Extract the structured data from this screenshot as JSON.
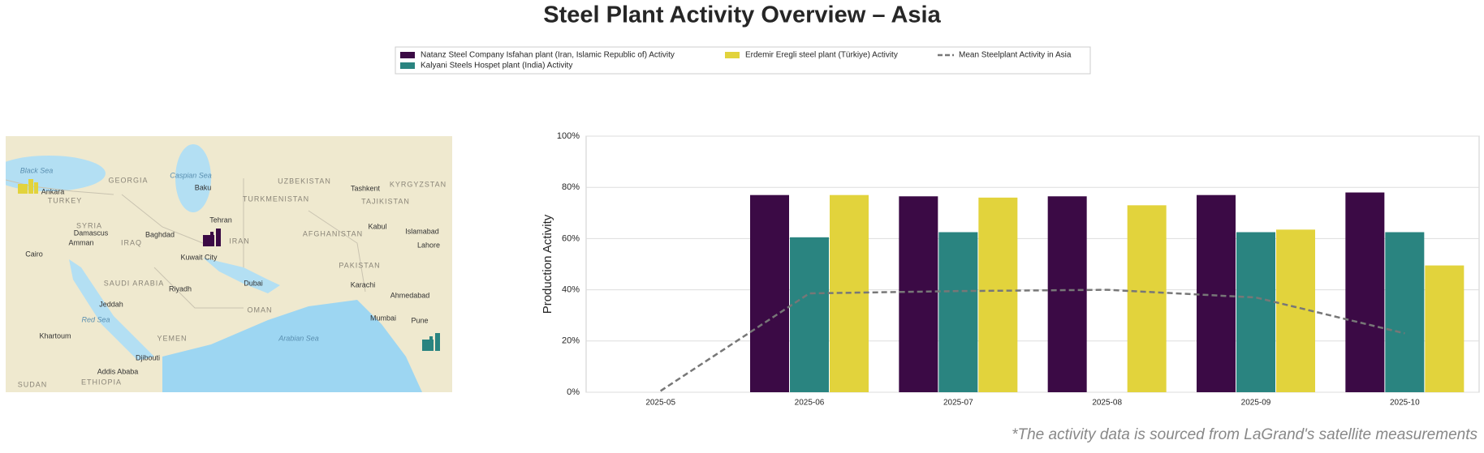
{
  "chart_data": {
    "type": "bar",
    "title": "Steel Plant Activity Overview – Asia",
    "y_label": "Production Activity",
    "footnote": "*The activity data is sourced from LaGrand's satellite measurements",
    "categories": [
      "2025-05",
      "2025-06",
      "2025-07",
      "2025-08",
      "2025-09",
      "2025-10"
    ],
    "series": [
      {
        "name": "Natanz Steel Company Isfahan plant (Iran, Islamic Republic of) Activity",
        "color": "#3b0a45",
        "values": [
          null,
          77,
          76.5,
          76.5,
          77,
          78
        ]
      },
      {
        "name": "Kalyani Steels Hospet plant (India) Activity",
        "color": "#2a8480",
        "values": [
          null,
          60.5,
          62.5,
          null,
          62.5,
          62.5
        ]
      },
      {
        "name": "Erdemir Eregli steel plant (Türkiye) Activity",
        "color": "#e2d33c",
        "values": [
          null,
          77,
          76,
          73,
          63.5,
          49.5
        ]
      }
    ],
    "line_series": {
      "name": "Mean Steelplant Activity in Asia",
      "color": "#777777",
      "values": [
        0.5,
        38.6,
        39.5,
        40,
        37,
        23
      ]
    },
    "ylim": [
      0,
      100
    ],
    "yticks": [
      {
        "value": 0,
        "label": "0%"
      },
      {
        "value": 20,
        "label": "20%"
      },
      {
        "value": 40,
        "label": "40%"
      },
      {
        "value": 60,
        "label": "60%"
      },
      {
        "value": 80,
        "label": "80%"
      },
      {
        "value": 100,
        "label": "100%"
      }
    ],
    "grid": true,
    "legend": "top"
  },
  "map": {
    "labels": [
      "Black Sea",
      "GEORGIA",
      "Caspian Sea",
      "UZBEKISTAN",
      "Tashkent",
      "KYRGYZSTAN",
      "Ankara",
      "TURKEY",
      "Baku",
      "TURKMENISTAN",
      "TAJIKISTAN",
      "Tehran",
      "Kabul",
      "Islamabad",
      "SYRIA",
      "Damascus",
      "Baghdad",
      "AFGHANISTAN",
      "Amman",
      "IRAQ",
      "IRAN",
      "Lahore",
      "Cairo",
      "Kuwait City",
      "PAKISTAN",
      "SAUDI ARABIA",
      "Dubai",
      "Karachi",
      "Riyadh",
      "Ahmedabad",
      "Jeddah",
      "OMAN",
      "Mumbai",
      "Pune",
      "Red Sea",
      "Khartoum",
      "YEMEN",
      "Arabian Sea",
      "Djibouti",
      "Addis Ababa",
      "ETHIOPIA",
      "SUDAN"
    ]
  }
}
